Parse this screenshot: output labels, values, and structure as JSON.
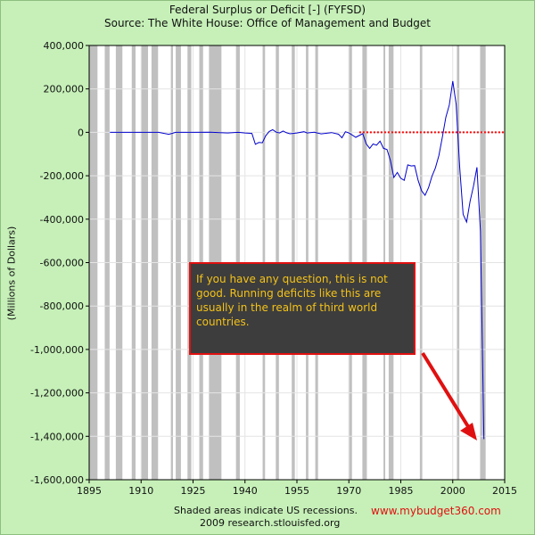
{
  "chart_data": {
    "type": "line",
    "title": "Federal Surplus or Deficit [-] (FYFSD)",
    "subtitle": "Source: The White House: Office of Management and Budget",
    "xlabel": "",
    "ylabel": "(Millions of Dollars)",
    "xlim": [
      1895,
      2015
    ],
    "ylim": [
      -1600000,
      400000
    ],
    "x_ticks": [
      1895,
      1910,
      1925,
      1940,
      1955,
      1970,
      1985,
      2000,
      2015
    ],
    "y_ticks": [
      400000,
      200000,
      0,
      -200000,
      -400000,
      -600000,
      -800000,
      -1000000,
      -1200000,
      -1400000,
      -1600000
    ],
    "grid": true,
    "series": [
      {
        "color": "#0000cc",
        "x": [
          1901,
          1905,
          1910,
          1915,
          1918,
          1920,
          1925,
          1930,
          1935,
          1938,
          1940,
          1942,
          1943,
          1944,
          1945,
          1946,
          1947,
          1948,
          1949,
          1950,
          1951,
          1952,
          1953,
          1955,
          1957,
          1958,
          1960,
          1962,
          1965,
          1967,
          1968,
          1969,
          1970,
          1972,
          1974,
          1975,
          1976,
          1977,
          1978,
          1979,
          1980,
          1981,
          1982,
          1983,
          1984,
          1985,
          1986,
          1987,
          1988,
          1989,
          1990,
          1991,
          1992,
          1993,
          1994,
          1995,
          1996,
          1997,
          1998,
          1999,
          2000,
          2001,
          2002,
          2003,
          2004,
          2005,
          2006,
          2007,
          2008,
          2009
        ],
        "y": [
          0,
          0,
          0,
          0,
          -9000,
          0,
          0,
          1000,
          -3000,
          0,
          -3000,
          -5000,
          -55000,
          -47000,
          -48000,
          -16000,
          4000,
          12000,
          1000,
          -3000,
          6000,
          -2000,
          -6500,
          -3000,
          3000,
          -2800,
          300,
          -7000,
          -1400,
          -8600,
          -25000,
          3000,
          -2800,
          -23000,
          -6100,
          -53000,
          -74000,
          -53700,
          -59200,
          -40700,
          -73800,
          -79000,
          -128000,
          -208000,
          -185000,
          -212000,
          -221000,
          -150000,
          -155000,
          -153000,
          -221000,
          -269000,
          -290000,
          -255000,
          -203000,
          -164000,
          -107000,
          -22000,
          69000,
          126000,
          236000,
          128000,
          -158000,
          -378000,
          -413000,
          -318000,
          -248000,
          -161000,
          -455000,
          -1413000
        ]
      }
    ],
    "reference_line": {
      "y": 0,
      "x_start": 1973,
      "x_end": 2015,
      "color": "#ff0000",
      "style": "dotted"
    },
    "recessions": [
      [
        1895.0,
        1897.4
      ],
      [
        1899.5,
        1900.9
      ],
      [
        1902.7,
        1904.6
      ],
      [
        1907.3,
        1908.4
      ],
      [
        1910.0,
        1912.0
      ],
      [
        1913.0,
        1914.9
      ],
      [
        1918.6,
        1919.2
      ],
      [
        1920.0,
        1921.5
      ],
      [
        1923.4,
        1924.5
      ],
      [
        1926.8,
        1927.9
      ],
      [
        1929.6,
        1933.2
      ],
      [
        1937.4,
        1938.5
      ],
      [
        1945.1,
        1945.8
      ],
      [
        1948.9,
        1949.8
      ],
      [
        1953.5,
        1954.4
      ],
      [
        1957.6,
        1958.3
      ],
      [
        1960.3,
        1961.1
      ],
      [
        1969.9,
        1970.9
      ],
      [
        1973.9,
        1975.2
      ],
      [
        1980.0,
        1980.5
      ],
      [
        1981.5,
        1982.9
      ],
      [
        1990.5,
        1991.2
      ],
      [
        2001.2,
        2001.9
      ],
      [
        2007.9,
        2009.5
      ]
    ],
    "recession_color": "#c0c0c0",
    "callout": {
      "text": "If you have any question, this is not good.  Running deficits like this are usually in the realm of third world countries.",
      "arrow_color": "#e01010"
    },
    "footer": {
      "line1": "Shaded areas indicate US recessions.",
      "line2": "2009 research.stlouisfed.org",
      "watermark": "www.mybudget360.com"
    }
  }
}
